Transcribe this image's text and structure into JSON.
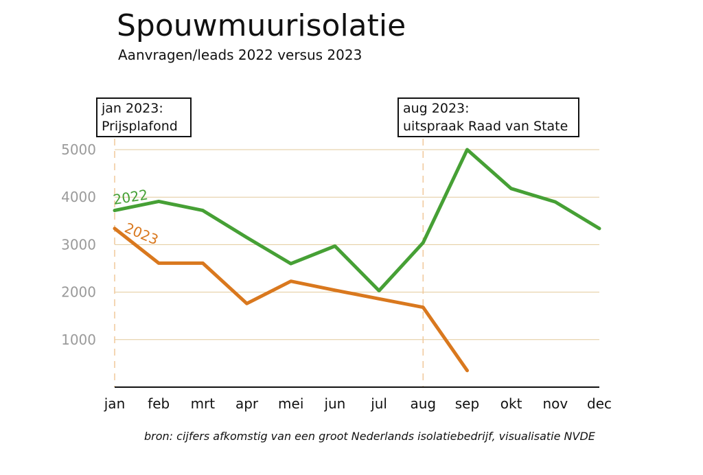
{
  "title": "Spouwmuurisolatie",
  "subtitle": "Aanvragen/leads 2022 versus 2023",
  "source": "bron: cijfers afkomstig van een groot Nederlands isolatiebedrijf, visualisatie NVDE",
  "annotations": [
    {
      "month": "jan",
      "line1": "jan 2023:",
      "line2": "Prijsplafond"
    },
    {
      "month": "aug",
      "line1": "aug 2023:",
      "line2": "uitspraak Raad van State"
    }
  ],
  "chart_data": {
    "type": "line",
    "categories": [
      "jan",
      "feb",
      "mrt",
      "apr",
      "mei",
      "jun",
      "jul",
      "aug",
      "sep",
      "okt",
      "nov",
      "dec"
    ],
    "series": [
      {
        "name": "2022",
        "color": "#46a035",
        "values": [
          3720,
          3910,
          3720,
          3150,
          2600,
          2970,
          2030,
          3040,
          5000,
          4180,
          3900,
          3340
        ]
      },
      {
        "name": "2023",
        "color": "#d9781e",
        "values": [
          3340,
          2610,
          2610,
          1760,
          2230,
          2040,
          1860,
          1680,
          350,
          null,
          null,
          null
        ]
      }
    ],
    "yticks": [
      1000,
      2000,
      3000,
      4000,
      5000
    ],
    "ylim": [
      0,
      5000
    ],
    "grid": true,
    "grid_color": "#e2c99a",
    "axis_color": "#111111",
    "tick_label_color": "#9a9a9a",
    "vline_color": "#f0c89a"
  }
}
